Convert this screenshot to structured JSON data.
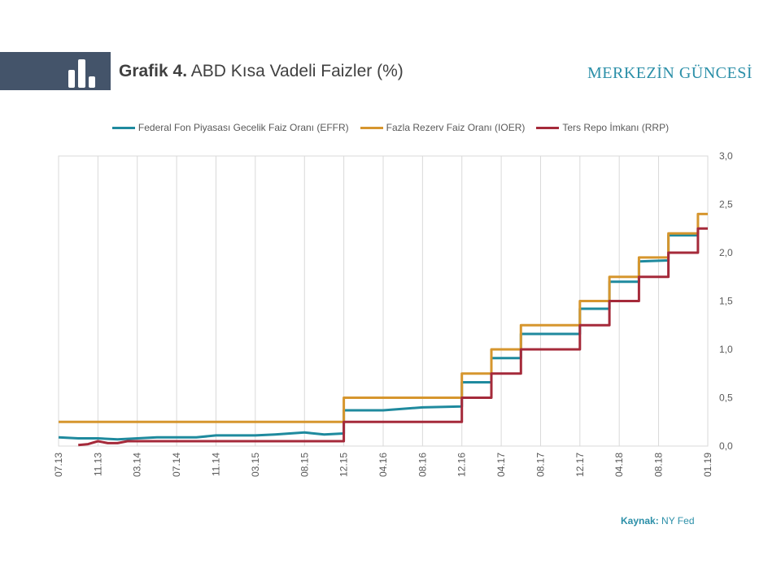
{
  "header": {
    "title_bold": "Grafik 4.",
    "title_rest": " ABD Kısa Vadeli Faizler (%)",
    "brand": "MERKEZİN GÜNCESİ",
    "icon": "bar-chart-icon"
  },
  "source": {
    "label": "Kaynak:",
    "value": " NY Fed"
  },
  "chart_data": {
    "type": "line",
    "title": "ABD Kısa Vadeli Faizler (%)",
    "x_tick_labels": [
      "07.13",
      "11.13",
      "03.14",
      "07.14",
      "11.14",
      "03.15",
      "08.15",
      "12.15",
      "04.16",
      "08.16",
      "12.16",
      "04.17",
      "08.17",
      "12.17",
      "04.18",
      "08.18",
      "01.19"
    ],
    "y_tick_labels": [
      "0,0",
      "0,5",
      "1,0",
      "1,5",
      "2,0",
      "2,5",
      "3,0"
    ],
    "ylim": [
      0,
      3
    ],
    "grid": "vertical",
    "legend_position": "top",
    "y_axis_side": "right",
    "series": [
      {
        "name": "Federal Fon Piyasası Gecelik Faiz Oranı (EFFR)",
        "color": "#1f8a9e",
        "points": [
          [
            "07.13",
            0.09
          ],
          [
            "09.13",
            0.08
          ],
          [
            "11.13",
            0.08
          ],
          [
            "01.14",
            0.07
          ],
          [
            "03.14",
            0.08
          ],
          [
            "05.14",
            0.09
          ],
          [
            "07.14",
            0.09
          ],
          [
            "09.14",
            0.09
          ],
          [
            "11.14",
            0.11
          ],
          [
            "01.15",
            0.11
          ],
          [
            "03.15",
            0.11
          ],
          [
            "05.15",
            0.12
          ],
          [
            "08.15",
            0.14
          ],
          [
            "10.15",
            0.12
          ],
          [
            "12.15",
            0.13
          ],
          [
            "12.15",
            0.37
          ],
          [
            "04.16",
            0.37
          ],
          [
            "08.16",
            0.4
          ],
          [
            "12.16",
            0.41
          ],
          [
            "12.16",
            0.66
          ],
          [
            "03.17",
            0.66
          ],
          [
            "03.17",
            0.91
          ],
          [
            "06.17",
            0.91
          ],
          [
            "06.17",
            1.16
          ],
          [
            "12.17",
            1.16
          ],
          [
            "12.17",
            1.42
          ],
          [
            "03.18",
            1.42
          ],
          [
            "03.18",
            1.7
          ],
          [
            "06.18",
            1.7
          ],
          [
            "06.18",
            1.91
          ],
          [
            "09.18",
            1.92
          ],
          [
            "09.18",
            2.18
          ],
          [
            "12.18",
            2.18
          ]
        ]
      },
      {
        "name": "Fazla Rezerv Faiz Oranı (IOER)",
        "color": "#d6962e",
        "points": [
          [
            "07.13",
            0.25
          ],
          [
            "12.15",
            0.25
          ],
          [
            "12.15",
            0.5
          ],
          [
            "12.16",
            0.5
          ],
          [
            "12.16",
            0.75
          ],
          [
            "03.17",
            0.75
          ],
          [
            "03.17",
            1.0
          ],
          [
            "06.17",
            1.0
          ],
          [
            "06.17",
            1.25
          ],
          [
            "12.17",
            1.25
          ],
          [
            "12.17",
            1.5
          ],
          [
            "03.18",
            1.5
          ],
          [
            "03.18",
            1.75
          ],
          [
            "06.18",
            1.75
          ],
          [
            "06.18",
            1.95
          ],
          [
            "09.18",
            1.95
          ],
          [
            "09.18",
            2.2
          ],
          [
            "12.18",
            2.2
          ],
          [
            "12.18",
            2.4
          ],
          [
            "01.19",
            2.4
          ]
        ]
      },
      {
        "name": "Ters Repo İmkanı (RRP)",
        "color": "#a52a3a",
        "points": [
          [
            "09.13",
            0.01
          ],
          [
            "10.13",
            0.02
          ],
          [
            "11.13",
            0.05
          ],
          [
            "12.13",
            0.03
          ],
          [
            "01.14",
            0.03
          ],
          [
            "02.14",
            0.05
          ],
          [
            "12.14",
            0.05
          ],
          [
            "12.15",
            0.05
          ],
          [
            "12.15",
            0.25
          ],
          [
            "12.16",
            0.25
          ],
          [
            "12.16",
            0.5
          ],
          [
            "03.17",
            0.5
          ],
          [
            "03.17",
            0.75
          ],
          [
            "06.17",
            0.75
          ],
          [
            "06.17",
            1.0
          ],
          [
            "12.17",
            1.0
          ],
          [
            "12.17",
            1.25
          ],
          [
            "03.18",
            1.25
          ],
          [
            "03.18",
            1.5
          ],
          [
            "06.18",
            1.5
          ],
          [
            "06.18",
            1.75
          ],
          [
            "09.18",
            1.75
          ],
          [
            "09.18",
            2.0
          ],
          [
            "12.18",
            2.0
          ],
          [
            "12.18",
            2.25
          ],
          [
            "01.19",
            2.25
          ]
        ]
      }
    ]
  }
}
